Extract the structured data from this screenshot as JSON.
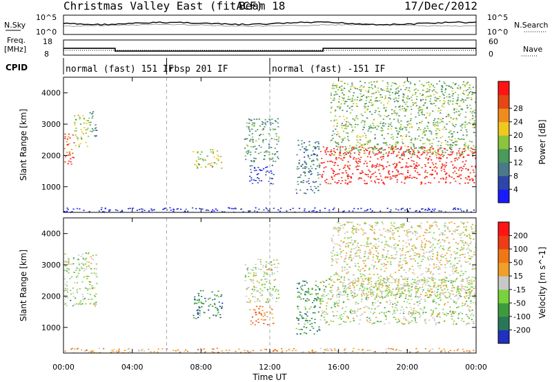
{
  "header": {
    "station": "Christmas Valley East (fitACF)",
    "beam": "Beam 18",
    "date": "17/Dec/2012"
  },
  "noise_panel": {
    "left_label": "N.Sky",
    "left_ticks": [
      "10^5",
      "10^0"
    ],
    "right_label": "N.Search",
    "right_ticks": [
      "10^5",
      "10^0"
    ]
  },
  "freq_panel": {
    "left_label_1": "Freq.",
    "left_label_2": "[MHz]",
    "left_ticks": [
      "18",
      "8"
    ],
    "right_label": "Nave",
    "right_ticks": [
      "60",
      "0"
    ],
    "freq_segments": [
      {
        "from_hour": 0.0,
        "to_hour": 3.0,
        "value": 12.5
      },
      {
        "from_hour": 3.0,
        "to_hour": 15.1,
        "value": 10.7
      },
      {
        "from_hour": 15.1,
        "to_hour": 24.0,
        "value": 12.5
      }
    ]
  },
  "cpid": {
    "label": "CPID",
    "modes": [
      {
        "label": "normal (fast) 151 IF",
        "from_hour": 0.0,
        "to_hour": 6.0
      },
      {
        "label": "rbsp 201 IF",
        "from_hour": 6.0,
        "to_hour": 12.0
      },
      {
        "label": "normal (fast) -151 IF",
        "from_hour": 12.0,
        "to_hour": 24.0
      }
    ]
  },
  "x_axis": {
    "label": "Time UT",
    "range": [
      0,
      24
    ],
    "ticks": [
      {
        "hour": 0,
        "label": "00:00"
      },
      {
        "hour": 4,
        "label": "04:00"
      },
      {
        "hour": 8,
        "label": "08:00"
      },
      {
        "hour": 12,
        "label": "12:00"
      },
      {
        "hour": 16,
        "label": "16:00"
      },
      {
        "hour": 20,
        "label": "20:00"
      },
      {
        "hour": 24,
        "label": "00:00"
      }
    ],
    "dashed_boundaries": [
      6,
      12
    ]
  },
  "chart_data": [
    {
      "type": "heatmap",
      "quantity": "Power",
      "ylabel": "Slant Range [km]",
      "ylim": [
        180,
        4500
      ],
      "yticks": [
        1000,
        2000,
        3000,
        4000
      ],
      "colorbar": {
        "label": "Power [dB]",
        "ticks": [
          "4",
          "8",
          "12",
          "16",
          "20",
          "24",
          "28"
        ],
        "colors": [
          "#1a1aff",
          "#2d46a8",
          "#4a7a8a",
          "#4a9a5a",
          "#8cc43c",
          "#f0c81e",
          "#f08c1e",
          "#e64614",
          "#ff1414"
        ]
      },
      "regions": [
        {
          "t0": 0.0,
          "t1": 0.6,
          "r0": 1700,
          "r1": 2700,
          "level": 0.85
        },
        {
          "t0": 0.6,
          "t1": 1.5,
          "r0": 2300,
          "r1": 3300,
          "level": 0.55
        },
        {
          "t0": 1.5,
          "t1": 1.9,
          "r0": 2600,
          "r1": 3500,
          "level": 0.3
        },
        {
          "t0": 7.5,
          "t1": 9.2,
          "r0": 1600,
          "r1": 2200,
          "level": 0.55
        },
        {
          "t0": 10.5,
          "t1": 12.5,
          "r0": 1800,
          "r1": 3200,
          "level": 0.35
        },
        {
          "t0": 10.8,
          "t1": 12.2,
          "r0": 1100,
          "r1": 1700,
          "level": 0.15
        },
        {
          "t0": 13.5,
          "t1": 14.9,
          "r0": 800,
          "r1": 2500,
          "level": 0.3
        },
        {
          "t0": 14.9,
          "t1": 24.0,
          "r0": 1100,
          "r1": 2300,
          "level": 0.95
        },
        {
          "t0": 15.5,
          "t1": 24.0,
          "r0": 2000,
          "r1": 4400,
          "level": 0.45
        },
        {
          "t0": 0.0,
          "t1": 24.0,
          "r0": 180,
          "r1": 350,
          "level": 0.08
        }
      ]
    },
    {
      "type": "heatmap",
      "quantity": "Velocity",
      "ylabel": "Slant Range [km]",
      "ylim": [
        180,
        4500
      ],
      "yticks": [
        1000,
        2000,
        3000,
        4000
      ],
      "colorbar": {
        "label": "Velocity [m s^-1]",
        "ticks": [
          "200",
          "100",
          "50",
          "15",
          "-15",
          "-50",
          "-100",
          "-200"
        ],
        "colors": [
          "#2030c0",
          "#287858",
          "#3c9c3c",
          "#78d23c",
          "#c8c8c8",
          "#f0a028",
          "#f07814",
          "#f03c14",
          "#ff1414"
        ]
      },
      "regions": [
        {
          "t0": 0.0,
          "t1": 1.9,
          "r0": 1700,
          "r1": 3400,
          "level": 0.45
        },
        {
          "t0": 7.5,
          "t1": 9.2,
          "r0": 1300,
          "r1": 2200,
          "level": 0.2
        },
        {
          "t0": 10.5,
          "t1": 12.5,
          "r0": 1800,
          "r1": 3200,
          "level": 0.45
        },
        {
          "t0": 10.8,
          "t1": 12.2,
          "r0": 1100,
          "r1": 1700,
          "level": 0.7
        },
        {
          "t0": 13.5,
          "t1": 14.9,
          "r0": 800,
          "r1": 2500,
          "level": 0.25
        },
        {
          "t0": 14.9,
          "t1": 24.0,
          "r0": 1100,
          "r1": 2600,
          "level": 0.45
        },
        {
          "t0": 15.5,
          "t1": 24.0,
          "r0": 2000,
          "r1": 4400,
          "level": 0.5
        },
        {
          "t0": 0.0,
          "t1": 24.0,
          "r0": 180,
          "r1": 350,
          "level": 0.65
        }
      ]
    }
  ]
}
